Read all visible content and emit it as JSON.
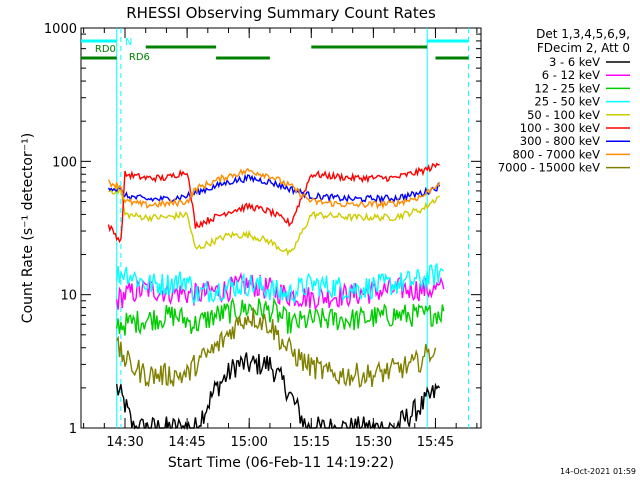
{
  "chart_data": {
    "type": "line",
    "title": "RHESSI Observing Summary Count Rates",
    "xlabel": "Start Time (06-Feb-11 14:19:22)",
    "ylabel": "Count Rate (s⁻¹ detector⁻¹)",
    "y_scale": "log",
    "ylim": [
      1,
      1000
    ],
    "xlim": [
      "14:19:22",
      "15:56:00"
    ],
    "x_ticks": [
      "14:30",
      "14:45",
      "15:00",
      "15:15",
      "15:30",
      "15:45"
    ],
    "y_ticks": [
      "1",
      "10",
      "100",
      "1000"
    ],
    "info_lines": [
      "Det 1,3,4,5,6,9,",
      "FDecim 2, Att 0"
    ],
    "timestamp": "14-Oct-2021 01:59",
    "series": [
      {
        "name": "3 - 6 keV",
        "color": "#000000",
        "data": [
          [
            "14:28",
            2
          ],
          [
            "14:30",
            1.5
          ],
          [
            "14:32",
            1
          ],
          [
            "14:47",
            1
          ],
          [
            "14:52",
            2
          ],
          [
            "14:57",
            3
          ],
          [
            "15:00",
            3
          ],
          [
            "15:05",
            3
          ],
          [
            "15:09",
            2
          ],
          [
            "15:14",
            1
          ],
          [
            "15:28",
            1
          ],
          [
            "15:35",
            1
          ],
          [
            "15:42",
            1.5
          ],
          [
            "15:46",
            2
          ]
        ]
      },
      {
        "name": "6 - 12 keV",
        "color": "#ff00ff",
        "data": [
          [
            "14:28",
            9
          ],
          [
            "14:30",
            10
          ],
          [
            "14:35",
            11
          ],
          [
            "14:47",
            10
          ],
          [
            "14:55",
            11
          ],
          [
            "15:00",
            12
          ],
          [
            "15:05",
            11
          ],
          [
            "15:09",
            10
          ],
          [
            "15:15",
            9.5
          ],
          [
            "15:25",
            10
          ],
          [
            "15:35",
            11
          ],
          [
            "15:43",
            11
          ],
          [
            "15:47",
            11
          ]
        ]
      },
      {
        "name": "12 - 25 keV",
        "color": "#00cc00",
        "data": [
          [
            "14:28",
            6
          ],
          [
            "14:30",
            6
          ],
          [
            "14:35",
            6.5
          ],
          [
            "14:42",
            7
          ],
          [
            "14:47",
            6
          ],
          [
            "14:52",
            7
          ],
          [
            "15:00",
            8
          ],
          [
            "15:06",
            7.5
          ],
          [
            "15:10",
            6
          ],
          [
            "15:15",
            6.5
          ],
          [
            "15:25",
            6.5
          ],
          [
            "15:35",
            7
          ],
          [
            "15:43",
            7
          ],
          [
            "15:47",
            7.5
          ]
        ]
      },
      {
        "name": "25 - 50 keV",
        "color": "#00ffff",
        "data": [
          [
            "14:28",
            14
          ],
          [
            "14:30",
            15
          ],
          [
            "14:35",
            12
          ],
          [
            "14:40",
            12
          ],
          [
            "14:45",
            13
          ],
          [
            "14:47",
            10
          ],
          [
            "14:52",
            11
          ],
          [
            "15:00",
            12
          ],
          [
            "15:05",
            11
          ],
          [
            "15:09",
            10
          ],
          [
            "15:15",
            12
          ],
          [
            "15:25",
            11
          ],
          [
            "15:35",
            12
          ],
          [
            "15:42",
            13
          ],
          [
            "15:47",
            15
          ]
        ]
      },
      {
        "name": "50 - 100 keV",
        "color": "#cccc00",
        "data": [
          [
            "14:26",
            60
          ],
          [
            "14:29",
            60
          ],
          [
            "14:30",
            40
          ],
          [
            "14:35",
            38
          ],
          [
            "14:40",
            38
          ],
          [
            "14:45",
            40
          ],
          [
            "14:47",
            22
          ],
          [
            "14:55",
            28
          ],
          [
            "15:00",
            28
          ],
          [
            "15:05",
            25
          ],
          [
            "15:10",
            20
          ],
          [
            "15:15",
            40
          ],
          [
            "15:25",
            38
          ],
          [
            "15:35",
            38
          ],
          [
            "15:42",
            44
          ],
          [
            "15:46",
            55
          ]
        ]
      },
      {
        "name": "100 - 300 keV",
        "color": "#ff0000",
        "data": [
          [
            "14:26",
            33
          ],
          [
            "14:29",
            25
          ],
          [
            "14:30",
            80
          ],
          [
            "14:35",
            75
          ],
          [
            "14:40",
            75
          ],
          [
            "14:45",
            85
          ],
          [
            "14:47",
            33
          ],
          [
            "14:55",
            42
          ],
          [
            "15:00",
            46
          ],
          [
            "15:05",
            42
          ],
          [
            "15:10",
            34
          ],
          [
            "15:15",
            80
          ],
          [
            "15:25",
            75
          ],
          [
            "15:35",
            75
          ],
          [
            "15:42",
            85
          ],
          [
            "15:46",
            95
          ]
        ]
      },
      {
        "name": "300 - 800 keV",
        "color": "#0000ff",
        "data": [
          [
            "14:26",
            65
          ],
          [
            "14:29",
            60
          ],
          [
            "14:30",
            55
          ],
          [
            "14:35",
            52
          ],
          [
            "14:40",
            52
          ],
          [
            "14:45",
            55
          ],
          [
            "14:47",
            58
          ],
          [
            "14:55",
            70
          ],
          [
            "15:00",
            75
          ],
          [
            "15:05",
            70
          ],
          [
            "15:10",
            62
          ],
          [
            "15:15",
            55
          ],
          [
            "15:25",
            52
          ],
          [
            "15:35",
            53
          ],
          [
            "15:42",
            58
          ],
          [
            "15:46",
            65
          ]
        ]
      },
      {
        "name": "800 - 7000 keV",
        "color": "#ff8c00",
        "data": [
          [
            "14:26",
            70
          ],
          [
            "14:29",
            65
          ],
          [
            "14:30",
            50
          ],
          [
            "14:35",
            47
          ],
          [
            "14:40",
            48
          ],
          [
            "14:45",
            50
          ],
          [
            "14:47",
            62
          ],
          [
            "14:55",
            78
          ],
          [
            "15:00",
            85
          ],
          [
            "15:05",
            78
          ],
          [
            "15:10",
            65
          ],
          [
            "15:15",
            50
          ],
          [
            "15:25",
            47
          ],
          [
            "15:35",
            48
          ],
          [
            "15:42",
            55
          ],
          [
            "15:46",
            70
          ]
        ]
      },
      {
        "name": "7000 - 15000 keV",
        "color": "#808000",
        "data": [
          [
            "14:28",
            4
          ],
          [
            "14:31",
            3
          ],
          [
            "14:35",
            2.5
          ],
          [
            "14:45",
            2.5
          ],
          [
            "14:47",
            3
          ],
          [
            "14:52",
            4
          ],
          [
            "14:57",
            6
          ],
          [
            "15:00",
            7
          ],
          [
            "15:05",
            6
          ],
          [
            "15:09",
            4
          ],
          [
            "15:14",
            3
          ],
          [
            "15:20",
            2.5
          ],
          [
            "15:30",
            2.5
          ],
          [
            "15:40",
            3
          ],
          [
            "15:45",
            4
          ]
        ]
      }
    ],
    "status_bars": [
      {
        "label": "N",
        "color": "#00ffff",
        "segments": [
          [
            "14:19:22",
            "14:28"
          ],
          [
            "15:43",
            "15:53"
          ]
        ]
      },
      {
        "label": "RD0",
        "color": "#008000",
        "segments": [
          [
            "14:35",
            "14:52"
          ],
          [
            "15:15",
            "15:43"
          ]
        ]
      },
      {
        "label": "RD6",
        "color": "#008000",
        "segments": [
          [
            "14:19:22",
            "14:28"
          ],
          [
            "14:52",
            "15:05"
          ],
          [
            "15:45",
            "15:53"
          ]
        ]
      }
    ],
    "vertical_markers": [
      {
        "time": "14:28",
        "color": "#00ffff",
        "style": "solid"
      },
      {
        "time": "14:29",
        "color": "#00ffff",
        "style": "dashed"
      },
      {
        "time": "15:43",
        "color": "#00ffff",
        "style": "solid"
      },
      {
        "time": "15:53",
        "color": "#00ffff",
        "style": "dashed"
      }
    ]
  }
}
